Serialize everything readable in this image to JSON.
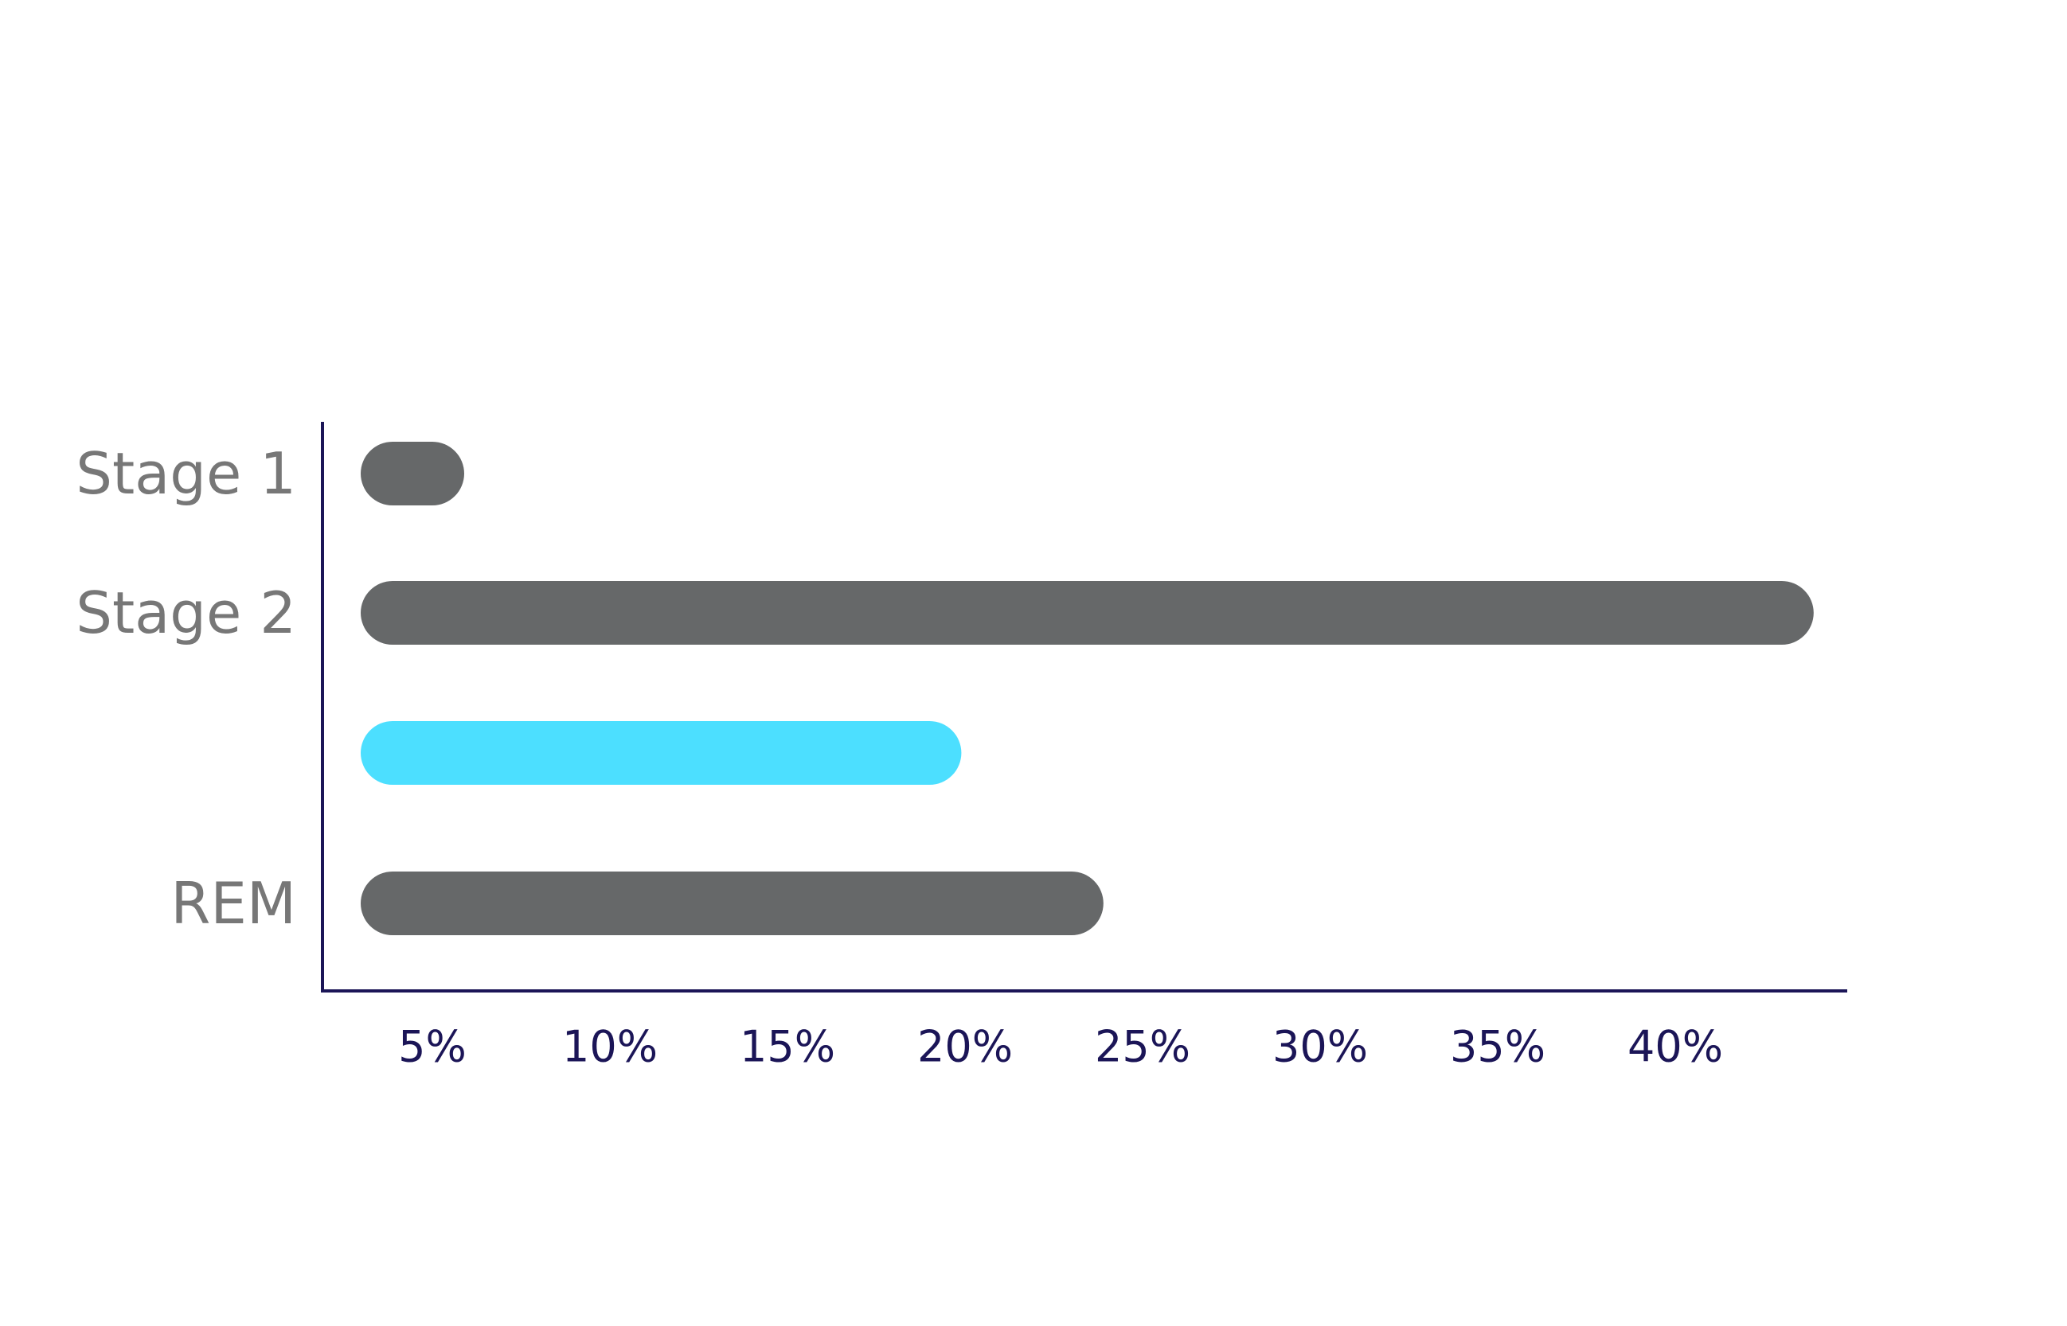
{
  "chart_data": {
    "type": "bar",
    "orientation": "horizontal",
    "categories": [
      "Stage 1",
      "Stage 2",
      "",
      "REM"
    ],
    "values": [
      5,
      43,
      19,
      23
    ],
    "bar_colors": [
      "#666869",
      "#666869",
      "#4cdfff",
      "#666869"
    ],
    "x_ticks": [
      5,
      10,
      15,
      20,
      25,
      30,
      35,
      40
    ],
    "x_tick_labels": [
      "5%",
      "10%",
      "15%",
      "20%",
      "25%",
      "30%",
      "35%",
      "40%"
    ],
    "xlim": [
      1.5,
      44
    ],
    "title": "",
    "xlabel": "",
    "ylabel": "",
    "grid": false,
    "legend": "none",
    "axis_color": "#1b1557",
    "label_color": "#777777",
    "tick_color": "#1b1557"
  }
}
